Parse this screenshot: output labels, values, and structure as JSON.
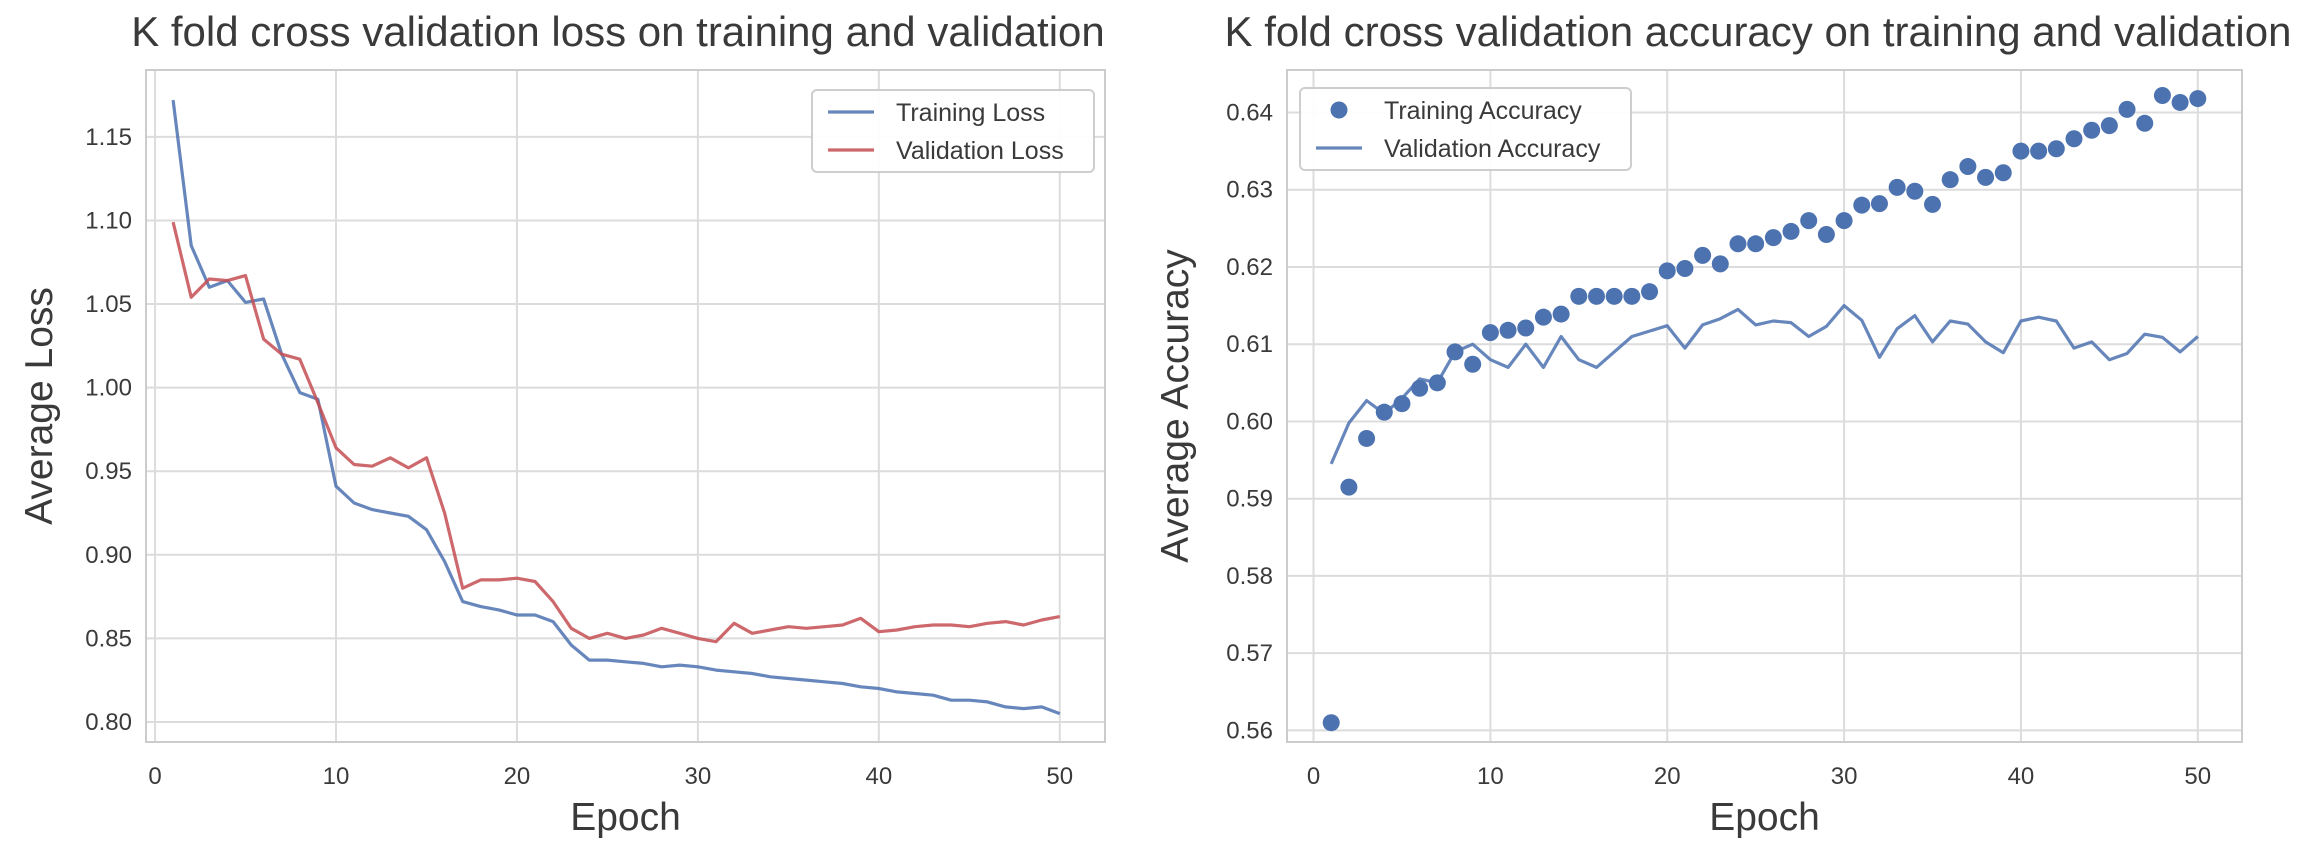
{
  "chart_data": [
    {
      "type": "line",
      "title": "K fold cross validation loss on training and validation",
      "xlabel": "Epoch",
      "ylabel": "Average Loss",
      "xlim": [
        -0.5,
        52.5
      ],
      "ylim": [
        0.788,
        1.19
      ],
      "xticks": [
        0,
        10,
        20,
        30,
        40,
        50
      ],
      "yticks": [
        0.8,
        0.85,
        0.9,
        0.95,
        1.0,
        1.05,
        1.1,
        1.15
      ],
      "ytick_labels": [
        "0.80",
        "0.85",
        "0.90",
        "0.95",
        "1.00",
        "1.05",
        "1.10",
        "1.15"
      ],
      "grid": true,
      "legend_position": "top-right",
      "series": [
        {
          "name": "Training Loss",
          "style": "line",
          "color": "#4c72b0",
          "x": [
            1,
            2,
            3,
            4,
            5,
            6,
            7,
            8,
            9,
            10,
            11,
            12,
            13,
            14,
            15,
            16,
            17,
            18,
            19,
            20,
            21,
            22,
            23,
            24,
            25,
            26,
            27,
            28,
            29,
            30,
            31,
            32,
            33,
            34,
            35,
            36,
            37,
            38,
            39,
            40,
            41,
            42,
            43,
            44,
            45,
            46,
            47,
            48,
            49,
            50
          ],
          "y": [
            1.172,
            1.085,
            1.06,
            1.064,
            1.051,
            1.053,
            1.02,
            0.997,
            0.993,
            0.941,
            0.931,
            0.927,
            0.925,
            0.923,
            0.915,
            0.896,
            0.872,
            0.869,
            0.867,
            0.864,
            0.864,
            0.86,
            0.846,
            0.837,
            0.837,
            0.836,
            0.835,
            0.833,
            0.834,
            0.833,
            0.831,
            0.83,
            0.829,
            0.827,
            0.826,
            0.825,
            0.824,
            0.823,
            0.821,
            0.82,
            0.818,
            0.817,
            0.816,
            0.813,
            0.813,
            0.812,
            0.809,
            0.808,
            0.809,
            0.805
          ]
        },
        {
          "name": "Validation Loss",
          "style": "line",
          "color": "#c44e52",
          "x": [
            1,
            2,
            3,
            4,
            5,
            6,
            7,
            8,
            9,
            10,
            11,
            12,
            13,
            14,
            15,
            16,
            17,
            18,
            19,
            20,
            21,
            22,
            23,
            24,
            25,
            26,
            27,
            28,
            29,
            30,
            31,
            32,
            33,
            34,
            35,
            36,
            37,
            38,
            39,
            40,
            41,
            42,
            43,
            44,
            45,
            46,
            47,
            48,
            49,
            50
          ],
          "y": [
            1.099,
            1.054,
            1.065,
            1.064,
            1.067,
            1.029,
            1.02,
            1.017,
            0.991,
            0.964,
            0.954,
            0.953,
            0.958,
            0.952,
            0.958,
            0.925,
            0.88,
            0.885,
            0.885,
            0.886,
            0.884,
            0.872,
            0.856,
            0.85,
            0.853,
            0.85,
            0.852,
            0.856,
            0.853,
            0.85,
            0.848,
            0.859,
            0.853,
            0.855,
            0.857,
            0.856,
            0.857,
            0.858,
            0.862,
            0.854,
            0.855,
            0.857,
            0.858,
            0.858,
            0.857,
            0.859,
            0.86,
            0.858,
            0.861,
            0.863
          ]
        }
      ]
    },
    {
      "type": "scatter+line",
      "title": "K fold cross validation accuracy on training and validation",
      "xlabel": "Epoch",
      "ylabel": "Average Accuracy",
      "xlim": [
        -1.5,
        52.5
      ],
      "ylim": [
        0.5585,
        0.6455
      ],
      "xticks": [
        0,
        10,
        20,
        30,
        40,
        50
      ],
      "yticks": [
        0.56,
        0.57,
        0.58,
        0.59,
        0.6,
        0.61,
        0.62,
        0.63,
        0.64
      ],
      "ytick_labels": [
        "0.56",
        "0.57",
        "0.58",
        "0.59",
        "0.60",
        "0.61",
        "0.62",
        "0.63",
        "0.64"
      ],
      "grid": true,
      "legend_position": "top-left",
      "series": [
        {
          "name": "Training Accuracy",
          "style": "scatter",
          "color": "#4c72b0",
          "x": [
            1,
            2,
            3,
            4,
            5,
            6,
            7,
            8,
            9,
            10,
            11,
            12,
            13,
            14,
            15,
            16,
            17,
            18,
            19,
            20,
            21,
            22,
            23,
            24,
            25,
            26,
            27,
            28,
            29,
            30,
            31,
            32,
            33,
            34,
            35,
            36,
            37,
            38,
            39,
            40,
            41,
            42,
            43,
            44,
            45,
            46,
            47,
            48,
            49,
            50
          ],
          "y": [
            0.561,
            0.5915,
            0.5978,
            0.6012,
            0.6023,
            0.6043,
            0.605,
            0.609,
            0.6074,
            0.6115,
            0.6118,
            0.6121,
            0.6135,
            0.6139,
            0.6162,
            0.6162,
            0.6162,
            0.6162,
            0.6168,
            0.6195,
            0.6198,
            0.6215,
            0.6204,
            0.623,
            0.623,
            0.6238,
            0.6246,
            0.626,
            0.6242,
            0.626,
            0.628,
            0.6282,
            0.6303,
            0.6298,
            0.6281,
            0.6313,
            0.633,
            0.6316,
            0.6322,
            0.635,
            0.635,
            0.6353,
            0.6366,
            0.6377,
            0.6383,
            0.6404,
            0.6386,
            0.6422,
            0.6413,
            0.6418
          ]
        },
        {
          "name": "Validation Accuracy",
          "style": "line",
          "color": "#4c72b0",
          "x": [
            1,
            2,
            3,
            4,
            5,
            6,
            7,
            8,
            9,
            10,
            11,
            12,
            13,
            14,
            15,
            16,
            17,
            18,
            19,
            20,
            21,
            22,
            23,
            24,
            25,
            26,
            27,
            28,
            29,
            30,
            31,
            32,
            33,
            34,
            35,
            36,
            37,
            38,
            39,
            40,
            41,
            42,
            43,
            44,
            45,
            46,
            47,
            48,
            49,
            50
          ],
          "y": [
            0.5945,
            0.5998,
            0.6027,
            0.601,
            0.603,
            0.6055,
            0.605,
            0.609,
            0.61,
            0.608,
            0.607,
            0.61,
            0.607,
            0.611,
            0.608,
            0.607,
            0.609,
            0.611,
            0.6117,
            0.6124,
            0.6095,
            0.6125,
            0.6133,
            0.6145,
            0.6125,
            0.613,
            0.6128,
            0.611,
            0.6123,
            0.615,
            0.6131,
            0.6083,
            0.612,
            0.6137,
            0.6103,
            0.613,
            0.6126,
            0.6103,
            0.6089,
            0.613,
            0.6135,
            0.613,
            0.6095,
            0.6103,
            0.608,
            0.6088,
            0.6113,
            0.6109,
            0.609,
            0.611
          ]
        }
      ]
    }
  ]
}
